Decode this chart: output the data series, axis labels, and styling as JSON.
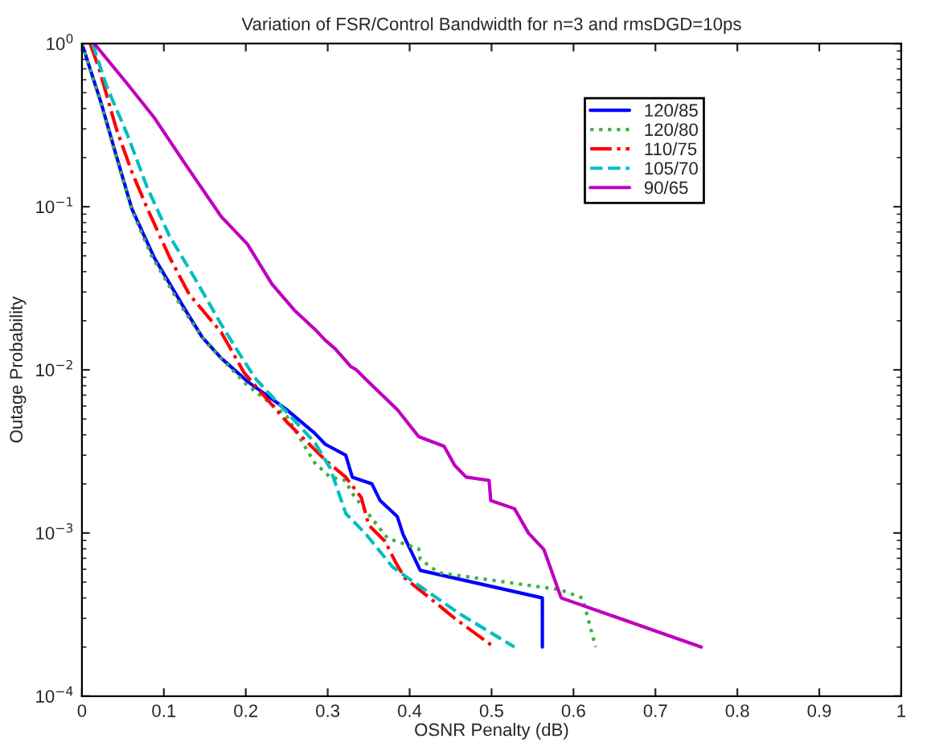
{
  "chart_data": {
    "type": "line",
    "title": "Variation of FSR/Control Bandwidth for n=3 and rmsDGD=10ps",
    "xlabel": "OSNR Penalty (dB)",
    "ylabel": "Outage Probability",
    "log": "y",
    "grid": false,
    "legend": "top right",
    "marker": "none",
    "xlim": [
      0,
      1
    ],
    "xticks": [
      0,
      0.1,
      0.2,
      0.3,
      0.4,
      0.5,
      0.6,
      0.7,
      0.8,
      0.9,
      1
    ],
    "ylim": [
      0.0001,
      1
    ],
    "yticks": [
      {
        "value": 0.0001,
        "label": "10$^{−4}$"
      },
      {
        "value": 0.001,
        "label": "10$^{−3}$"
      },
      {
        "value": 0.01,
        "label": "10$^{−2}$"
      },
      {
        "value": 0.1,
        "label": "10$^{−1}$"
      },
      {
        "value": 1,
        "label": "10$^{0}$"
      }
    ],
    "series": [
      {
        "name": "120/85",
        "color": "#0000ff",
        "line_style": "solid",
        "x": [
          0,
          0.023,
          0.042,
          0.061,
          0.088,
          0.126,
          0.147,
          0.17,
          0.202,
          0.25,
          0.284,
          0.297,
          0.322,
          0.33,
          0.354,
          0.364,
          0.385,
          0.392,
          0.413,
          0.562,
          0.562
        ],
        "values": [
          1,
          0.44,
          0.205,
          0.097,
          0.049,
          0.0234,
          0.0158,
          0.0118,
          0.0085,
          0.0057,
          0.0041,
          0.0035,
          0.003,
          0.0022,
          0.002,
          0.00158,
          0.00126,
          0.00098,
          0.00059,
          0.0004,
          0.0002
        ]
      },
      {
        "name": "120/80",
        "color": "#40b040",
        "line_style": "dotted",
        "x": [
          0,
          0.023,
          0.042,
          0.061,
          0.085,
          0.12,
          0.15,
          0.2,
          0.25,
          0.284,
          0.303,
          0.322,
          0.328,
          0.345,
          0.373,
          0.411,
          0.413,
          0.436,
          0.583,
          0.611,
          0.627
        ],
        "values": [
          1,
          0.43,
          0.2,
          0.095,
          0.05,
          0.025,
          0.015,
          0.0082,
          0.0052,
          0.0027,
          0.0022,
          0.0021,
          0.0018,
          0.0014,
          0.00093,
          0.0008,
          0.00069,
          0.00057,
          0.00045,
          0.0004,
          0.0002
        ]
      },
      {
        "name": "110/75",
        "color": "#ff0000",
        "line_style": "dashdot",
        "x": [
          0.01,
          0.021,
          0.042,
          0.061,
          0.08,
          0.107,
          0.131,
          0.17,
          0.198,
          0.25,
          0.297,
          0.322,
          0.341,
          0.35,
          0.37,
          0.383,
          0.394,
          0.43,
          0.455,
          0.503
        ],
        "values": [
          1,
          0.7,
          0.3,
          0.163,
          0.097,
          0.049,
          0.029,
          0.017,
          0.0096,
          0.0048,
          0.0028,
          0.0022,
          0.00165,
          0.00112,
          0.00089,
          0.00066,
          0.00053,
          0.00038,
          0.0003,
          0.0002
        ]
      },
      {
        "name": "105/70",
        "color": "#00bfbf",
        "line_style": "dashed",
        "x": [
          0.013,
          0.03,
          0.055,
          0.08,
          0.107,
          0.137,
          0.17,
          0.198,
          0.213,
          0.284,
          0.303,
          0.322,
          0.347,
          0.379,
          0.398,
          0.461,
          0.528
        ],
        "values": [
          1,
          0.55,
          0.28,
          0.13,
          0.066,
          0.037,
          0.019,
          0.0113,
          0.0087,
          0.0036,
          0.0025,
          0.00132,
          0.00098,
          0.00062,
          0.00053,
          0.00032,
          0.0002
        ]
      },
      {
        "name": "90/65",
        "color": "#bf00bf",
        "line_style": "solid",
        "x": [
          0.015,
          0.055,
          0.088,
          0.126,
          0.17,
          0.202,
          0.232,
          0.259,
          0.284,
          0.297,
          0.309,
          0.328,
          0.335,
          0.347,
          0.385,
          0.411,
          0.442,
          0.455,
          0.469,
          0.497,
          0.499,
          0.528,
          0.545,
          0.564,
          0.585,
          0.756
        ],
        "values": [
          1,
          0.57,
          0.353,
          0.183,
          0.087,
          0.059,
          0.0335,
          0.0233,
          0.0178,
          0.0152,
          0.0135,
          0.0105,
          0.01,
          0.0087,
          0.0057,
          0.0039,
          0.0034,
          0.0026,
          0.0022,
          0.0021,
          0.00158,
          0.00141,
          0.001,
          0.00079,
          0.0004,
          0.0002
        ]
      }
    ]
  }
}
